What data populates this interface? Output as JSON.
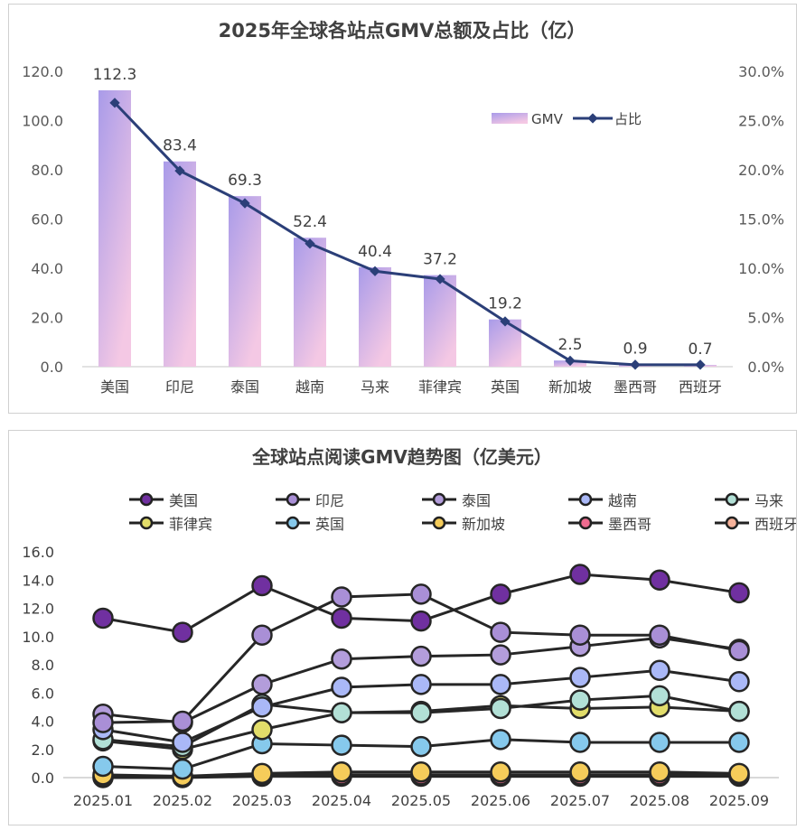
{
  "chart_data": [
    {
      "type": "bar",
      "title": "2025年全球各站点GMV总额及占比（亿）",
      "categories": [
        "美国",
        "印尼",
        "泰国",
        "越南",
        "马来",
        "菲律宾",
        "英国",
        "新加坡",
        "墨西哥",
        "西班牙"
      ],
      "series": [
        {
          "name": "GMV",
          "type": "bar",
          "axis": "left",
          "values": [
            112.3,
            83.4,
            69.3,
            52.4,
            40.4,
            37.2,
            19.2,
            2.5,
            0.9,
            0.7
          ],
          "data_labels": [
            "112.3",
            "83.4",
            "69.3",
            "52.4",
            "40.4",
            "37.2",
            "19.2",
            "2.5",
            "0.9",
            "0.7"
          ]
        },
        {
          "name": "占比",
          "type": "line",
          "axis": "right",
          "values": [
            26.8,
            19.9,
            16.6,
            12.5,
            9.7,
            8.9,
            4.6,
            0.6,
            0.2,
            0.2
          ]
        }
      ],
      "ylim": [
        0,
        120
      ],
      "yticks": [
        "0.0",
        "20.0",
        "40.0",
        "60.0",
        "80.0",
        "100.0",
        "120.0"
      ],
      "y2lim": [
        0,
        30
      ],
      "y2ticks": [
        "0.0%",
        "5.0%",
        "10.0%",
        "15.0%",
        "20.0%",
        "25.0%",
        "30.0%"
      ],
      "legend": "top-right",
      "colors": {
        "bar_top": "#a99be9",
        "bar_bottom": "#f4c8e4",
        "line": "#2b3f78"
      }
    },
    {
      "type": "line",
      "title": "全球站点阅读GMV趋势图（亿美元）",
      "x": [
        "2025.01",
        "2025.02",
        "2025.03",
        "2025.04",
        "2025.05",
        "2025.06",
        "2025.07",
        "2025.08",
        "2025.09"
      ],
      "ylim": [
        0,
        16
      ],
      "yticks": [
        "0.0",
        "2.0",
        "4.0",
        "6.0",
        "8.0",
        "10.0",
        "12.0",
        "14.0",
        "16.0"
      ],
      "legend": "top",
      "series": [
        {
          "name": "美国",
          "color": "#7030a0",
          "values": [
            11.3,
            10.3,
            13.6,
            11.3,
            11.1,
            13.0,
            14.4,
            14.0,
            13.1
          ]
        },
        {
          "name": "印尼",
          "color": "#a98fd6",
          "values": [
            3.9,
            4.0,
            10.1,
            12.8,
            13.0,
            10.3,
            10.1,
            10.1,
            9.0
          ]
        },
        {
          "name": "泰国",
          "color": "#b39ddb",
          "values": [
            4.5,
            3.9,
            6.6,
            8.4,
            8.6,
            8.7,
            9.3,
            9.9,
            9.1
          ]
        },
        {
          "name": "越南",
          "color": "#aab8f7",
          "values": [
            3.4,
            2.5,
            5.0,
            6.4,
            6.6,
            6.6,
            7.1,
            7.6,
            6.8
          ]
        },
        {
          "name": "马来",
          "color": "#b2e0d6",
          "values": [
            2.7,
            2.2,
            5.2,
            4.6,
            4.6,
            4.9,
            5.5,
            5.8,
            4.7
          ]
        },
        {
          "name": "菲律宾",
          "color": "#e2dd6a",
          "values": [
            2.6,
            2.0,
            3.4,
            4.6,
            4.7,
            5.1,
            4.9,
            5.0,
            4.7
          ]
        },
        {
          "name": "英国",
          "color": "#86c9ec",
          "values": [
            0.8,
            0.6,
            2.4,
            2.3,
            2.2,
            2.7,
            2.5,
            2.5,
            2.5
          ]
        },
        {
          "name": "新加坡",
          "color": "#f5cc5a",
          "values": [
            0.2,
            0.1,
            0.3,
            0.4,
            0.4,
            0.4,
            0.4,
            0.4,
            0.3
          ]
        },
        {
          "name": "墨西哥",
          "color": "#ee6b8f",
          "values": [
            0.1,
            0.1,
            0.2,
            0.2,
            0.2,
            0.2,
            0.2,
            0.2,
            0.2
          ]
        },
        {
          "name": "西班牙",
          "color": "#f7b39b",
          "values": [
            0.0,
            0.0,
            0.1,
            0.1,
            0.1,
            0.1,
            0.1,
            0.1,
            0.1
          ]
        }
      ]
    }
  ]
}
